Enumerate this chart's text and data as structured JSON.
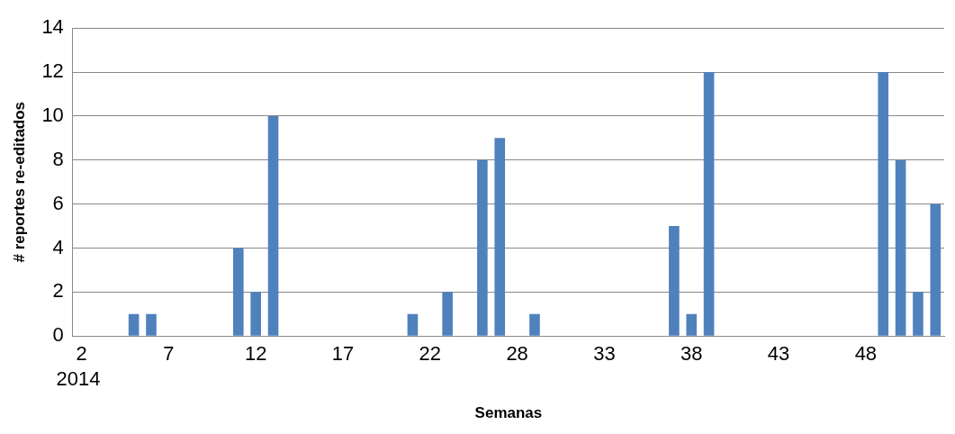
{
  "chart_data": {
    "type": "bar",
    "xlabel": "Semanas",
    "ylabel": "# reportes re-editados",
    "categories": [
      "2",
      null,
      null,
      null,
      null,
      "7",
      null,
      null,
      null,
      null,
      "12",
      null,
      null,
      null,
      null,
      "17",
      null,
      null,
      null,
      null,
      "22",
      null,
      null,
      null,
      null,
      "28",
      null,
      null,
      null,
      null,
      "33",
      null,
      null,
      null,
      null,
      "38",
      null,
      null,
      null,
      null,
      "43",
      null,
      null,
      null,
      null,
      "48",
      null,
      null,
      null,
      null
    ],
    "values": [
      0,
      0,
      0,
      1,
      1,
      0,
      0,
      0,
      0,
      4,
      2,
      10,
      0,
      0,
      0,
      0,
      0,
      0,
      0,
      1,
      0,
      2,
      0,
      8,
      9,
      0,
      1,
      0,
      0,
      0,
      0,
      0,
      0,
      0,
      5,
      1,
      12,
      0,
      0,
      0,
      0,
      0,
      0,
      0,
      0,
      0,
      12,
      8,
      2,
      6
    ],
    "color": "#4f81bd",
    "ylim": [
      0,
      14
    ],
    "yticks": [
      0,
      2,
      4,
      6,
      8,
      10,
      12,
      14
    ],
    "grid": "y",
    "legend": false,
    "annotations": [
      "2014"
    ]
  }
}
